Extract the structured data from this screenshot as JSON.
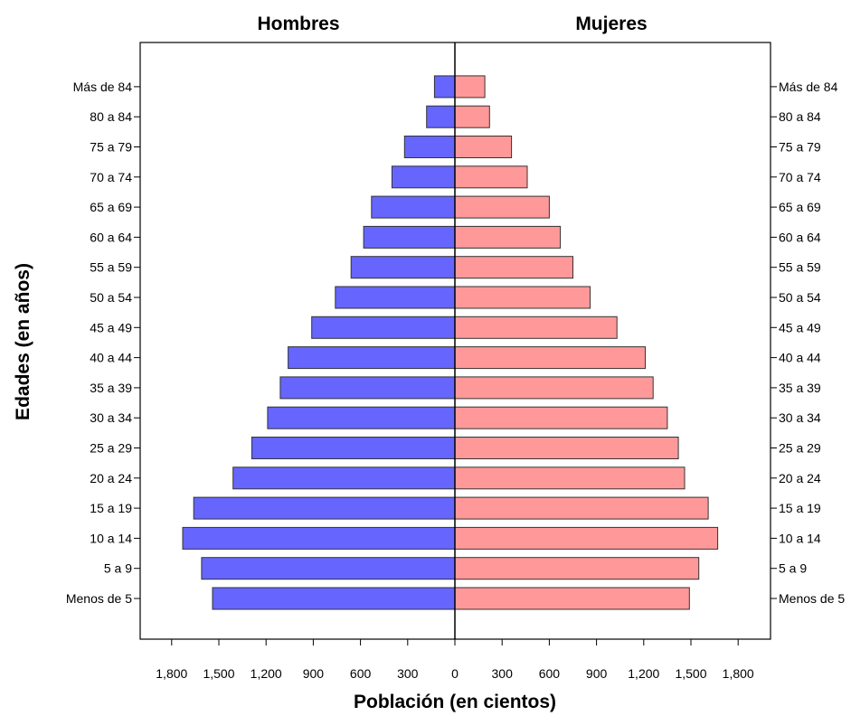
{
  "chart_data": {
    "type": "bar",
    "orientation": "horizontal",
    "layout": "population-pyramid",
    "xlabel": "Población (en cientos)",
    "ylabel": "Edades (en años)",
    "categories": [
      "Menos de 5",
      "5 a 9",
      "10 a 14",
      "15 a 19",
      "20 a 24",
      "25 a 29",
      "30 a 34",
      "35 a 39",
      "40 a 44",
      "45 a 49",
      "50 a 54",
      "55 a 59",
      "60 a 64",
      "65 a 69",
      "70 a 74",
      "75 a 79",
      "80 a 84",
      "Más de 84"
    ],
    "series": [
      {
        "name": "Hombres",
        "color": "#6666ff",
        "values": [
          1540,
          1610,
          1730,
          1660,
          1410,
          1290,
          1190,
          1110,
          1060,
          910,
          760,
          660,
          580,
          530,
          400,
          320,
          180,
          130
        ]
      },
      {
        "name": "Mujeres",
        "color": "#ff9999",
        "values": [
          1490,
          1550,
          1670,
          1610,
          1460,
          1420,
          1350,
          1260,
          1210,
          1030,
          860,
          750,
          670,
          600,
          460,
          360,
          220,
          190
        ]
      }
    ],
    "xlim": [
      -2000,
      2000
    ],
    "xticks": [
      {
        "value": -1800,
        "label": "1,800"
      },
      {
        "value": -1500,
        "label": "1,500"
      },
      {
        "value": -1200,
        "label": "1,200"
      },
      {
        "value": -900,
        "label": "900"
      },
      {
        "value": -600,
        "label": "600"
      },
      {
        "value": -300,
        "label": "300"
      },
      {
        "value": 0,
        "label": "0"
      },
      {
        "value": 300,
        "label": "300"
      },
      {
        "value": 600,
        "label": "600"
      },
      {
        "value": 900,
        "label": "900"
      },
      {
        "value": 1200,
        "label": "1,200"
      },
      {
        "value": 1500,
        "label": "1,500"
      },
      {
        "value": 1800,
        "label": "1,800"
      }
    ],
    "grid": false,
    "legend": "none",
    "bar_outline": "#333333"
  }
}
